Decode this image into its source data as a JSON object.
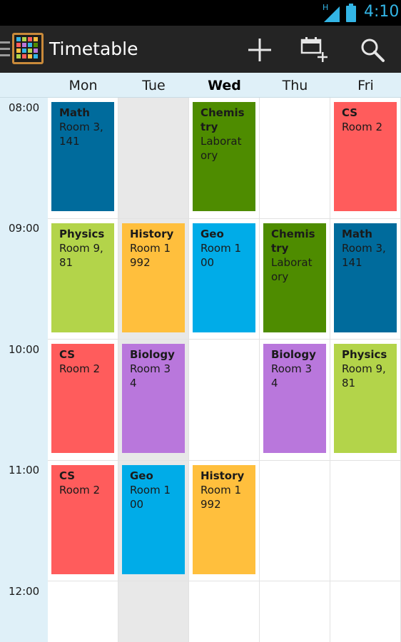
{
  "status_bar": {
    "network_letter": "H",
    "time": "4:10",
    "accent_color": "#33b5e5",
    "icons": [
      "signal-icon",
      "battery-icon"
    ]
  },
  "action_bar": {
    "title": "Timetable",
    "icons": [
      "menu-icon",
      "app-grid-icon",
      "add-icon",
      "add-schedule-icon",
      "search-icon"
    ]
  },
  "days": [
    "Mon",
    "Tue",
    "Wed",
    "Thu",
    "Fri"
  ],
  "today": "Wed",
  "times": [
    "08:00",
    "09:00",
    "10:00",
    "11:00",
    "12:00"
  ],
  "colors": {
    "Math": "#006b9c",
    "Chemistry": "#4e8c00",
    "CS": "#ff5c5c",
    "Physics": "#b3d44a",
    "History": "#ffbf3d",
    "Geo": "#00ace8",
    "Biology": "#b977dc"
  },
  "events": {
    "mon_0800": {
      "subject": "Math",
      "room": "Room 3,141"
    },
    "wed_0800": {
      "subject": "Chemistry",
      "room": "Laboratory"
    },
    "fri_0800": {
      "subject": "CS",
      "room": "Room 2"
    },
    "mon_0900": {
      "subject": "Physics",
      "room": "Room 9,81"
    },
    "tue_0900": {
      "subject": "History",
      "room": "Room 1992"
    },
    "wed_0900": {
      "subject": "Geo",
      "room": "Room 100"
    },
    "thu_0900": {
      "subject": "Chemistry",
      "room": "Laboratory"
    },
    "fri_0900": {
      "subject": "Math",
      "room": "Room 3,141"
    },
    "mon_1000": {
      "subject": "CS",
      "room": "Room 2"
    },
    "tue_1000": {
      "subject": "Biology",
      "room": "Room 34"
    },
    "thu_1000": {
      "subject": "Biology",
      "room": "Room 34"
    },
    "fri_1000": {
      "subject": "Physics",
      "room": "Room 9,81"
    },
    "mon_1100": {
      "subject": "CS",
      "room": "Room 2"
    },
    "tue_1100": {
      "subject": "Geo",
      "room": "Room 100"
    },
    "wed_1100": {
      "subject": "History",
      "room": "Room 1992"
    }
  }
}
